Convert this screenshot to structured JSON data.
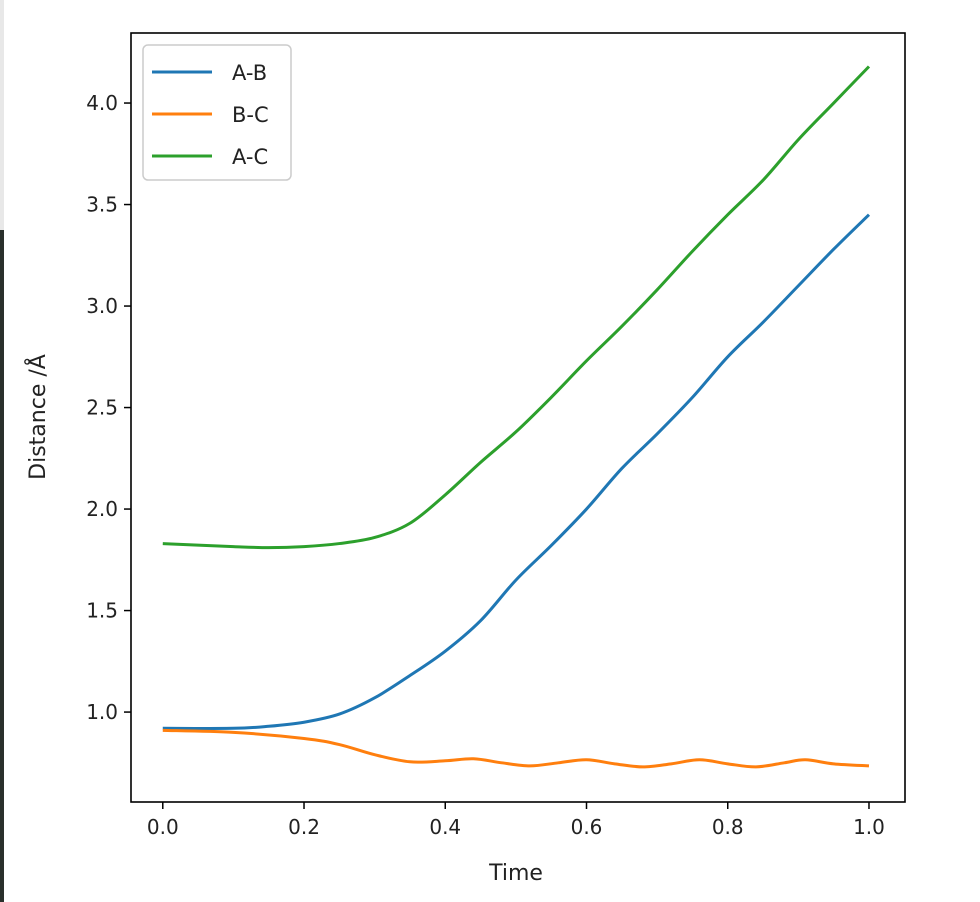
{
  "chart_data": {
    "type": "line",
    "title": "",
    "xlabel": "Time",
    "ylabel": "Distance /Å",
    "xlim": [
      -0.045,
      1.051
    ],
    "ylim": [
      0.557,
      4.345
    ],
    "xticks": [
      "0.0",
      "0.2",
      "0.4",
      "0.6",
      "0.8",
      "1.0"
    ],
    "yticks": [
      "1.0",
      "1.5",
      "2.0",
      "2.5",
      "3.0",
      "3.5",
      "4.0"
    ],
    "legend_position": "top-left",
    "series": [
      {
        "name": "A-B",
        "color": "#1f77b4",
        "x": [
          0,
          0.1,
          0.15,
          0.2,
          0.25,
          0.3,
          0.35,
          0.4,
          0.45,
          0.5,
          0.55,
          0.6,
          0.65,
          0.7,
          0.75,
          0.8,
          0.85,
          0.9,
          0.95,
          1.0
        ],
        "y": [
          0.92,
          0.92,
          0.93,
          0.95,
          0.99,
          1.07,
          1.18,
          1.3,
          1.45,
          1.65,
          1.82,
          2.0,
          2.2,
          2.37,
          2.55,
          2.75,
          2.92,
          3.1,
          3.28,
          3.45
        ]
      },
      {
        "name": "B-C",
        "color": "#ff7f0e",
        "x": [
          0,
          0.1,
          0.2,
          0.25,
          0.3,
          0.35,
          0.4,
          0.44,
          0.48,
          0.52,
          0.56,
          0.6,
          0.64,
          0.68,
          0.72,
          0.76,
          0.8,
          0.84,
          0.88,
          0.91,
          0.95,
          1.0
        ],
        "y": [
          0.91,
          0.9,
          0.87,
          0.84,
          0.79,
          0.755,
          0.76,
          0.77,
          0.75,
          0.735,
          0.75,
          0.765,
          0.745,
          0.73,
          0.745,
          0.765,
          0.745,
          0.73,
          0.75,
          0.765,
          0.745,
          0.735
        ]
      },
      {
        "name": "A-C",
        "color": "#2ca02c",
        "x": [
          0,
          0.1,
          0.15,
          0.2,
          0.25,
          0.3,
          0.35,
          0.4,
          0.45,
          0.5,
          0.55,
          0.6,
          0.65,
          0.7,
          0.75,
          0.8,
          0.85,
          0.9,
          0.95,
          1.0
        ],
        "y": [
          1.83,
          1.815,
          1.81,
          1.815,
          1.83,
          1.86,
          1.93,
          2.07,
          2.23,
          2.38,
          2.55,
          2.73,
          2.9,
          3.08,
          3.27,
          3.45,
          3.62,
          3.82,
          4.0,
          4.18
        ]
      }
    ]
  }
}
